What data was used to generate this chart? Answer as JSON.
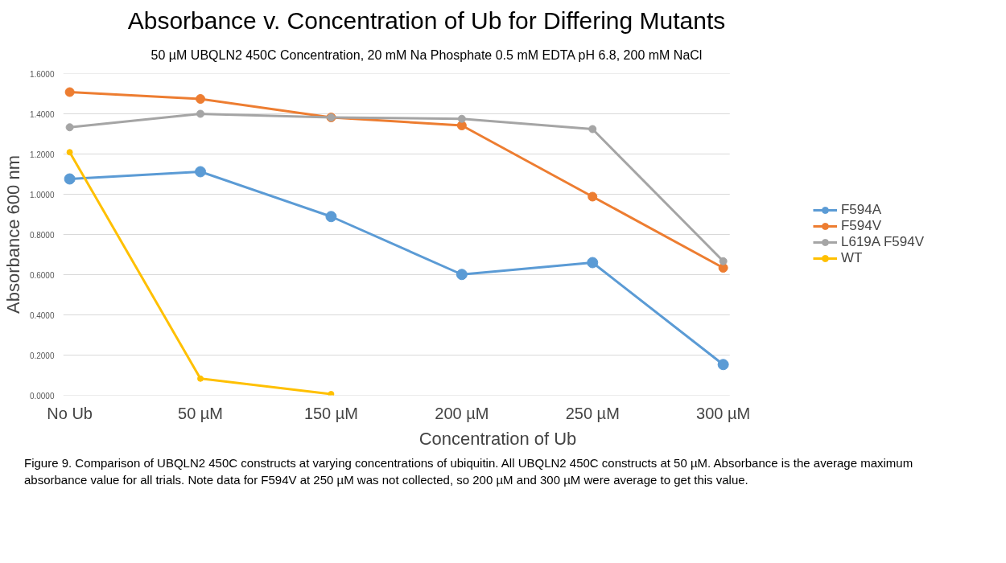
{
  "chart_data": {
    "type": "line",
    "title": "Absorbance v. Concentration of Ub for Differing Mutants",
    "subtitle": "50 µM UBQLN2 450C Concentration, 20 mM Na Phosphate 0.5 mM EDTA pH 6.8, 200 mM NaCl",
    "xlabel": "Concentration of Ub",
    "ylabel": "Absorbance 600 nm",
    "categories": [
      "No Ub",
      "50 µM",
      "150 µM",
      "200 µM",
      "250 µM",
      "300 µM"
    ],
    "series": [
      {
        "name": "F594A",
        "color": "#5b9bd5",
        "values": [
          1.076,
          1.112,
          0.889,
          0.601,
          0.66,
          0.153
        ]
      },
      {
        "name": "F594V",
        "color": "#ed7d31",
        "values": [
          1.508,
          1.474,
          1.382,
          1.342,
          0.988,
          0.634
        ]
      },
      {
        "name": "L619A F594V",
        "color": "#a5a5a5",
        "values": [
          1.333,
          1.4,
          1.382,
          1.375,
          1.324,
          0.667
        ]
      },
      {
        "name": "WT",
        "color": "#ffc000",
        "values": [
          1.209,
          0.083,
          0.006,
          null,
          null,
          null
        ]
      }
    ],
    "ylim": [
      0,
      1.6
    ],
    "yticks": [
      {
        "value": 0,
        "label": "0.0000"
      },
      {
        "value": 0.2,
        "label": "0.2000"
      },
      {
        "value": 0.4,
        "label": "0.4000"
      },
      {
        "value": 0.6,
        "label": "0.6000"
      },
      {
        "value": 0.8,
        "label": "0.8000"
      },
      {
        "value": 1.0,
        "label": "1.0000"
      },
      {
        "value": 1.2,
        "label": "1.2000"
      },
      {
        "value": 1.4,
        "label": "1.4000"
      },
      {
        "value": 1.6,
        "label": "1.6000"
      }
    ],
    "grid": "y",
    "legend": "right",
    "marker": "circle",
    "line_style": "solid",
    "annotations": [
      "Figure 9. Comparison of UBQLN2 450C constructs at varying concentrations of ubiquitin. All UBQLN2 450C constructs at 50 µM. Absorbance is the average maximum absorbance value for all trials. Note data for F594V at 250 µM was not collected, so 200 µM and 300 µM were average to get this value."
    ]
  }
}
